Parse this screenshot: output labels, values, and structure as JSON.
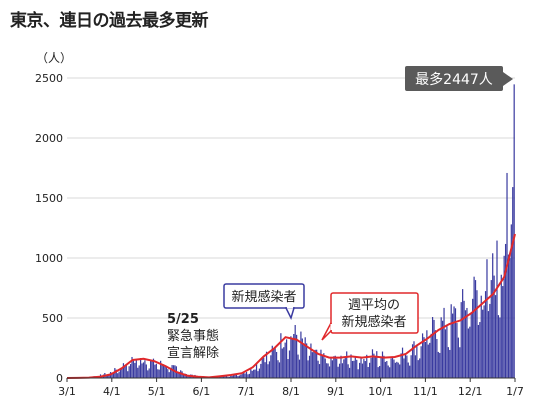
{
  "title": "東京、連日の過去最多更新",
  "unit_label": "（人）",
  "chart_data": {
    "type": "bar",
    "title": "東京、連日の過去最多更新",
    "ylabel": "（人）",
    "xlabel": "",
    "ylim": [
      0,
      2500
    ],
    "yticks": [
      0,
      500,
      1000,
      1500,
      2000,
      2500
    ],
    "xticks": [
      "3/1",
      "4/1",
      "5/1",
      "6/1",
      "7/1",
      "8/1",
      "9/1",
      "10/1",
      "11/1",
      "12/1",
      "1/7"
    ],
    "grid": true,
    "series": [
      {
        "name": "新規感染者",
        "type": "bar",
        "color": "#3a3ba0",
        "values_weekly_peak": [
          2,
          5,
          10,
          30,
          60,
          130,
          190,
          200,
          160,
          150,
          100,
          40,
          20,
          10,
          20,
          30,
          50,
          100,
          230,
          290,
          470,
          460,
          330,
          250,
          200,
          210,
          230,
          210,
          250,
          230,
          220,
          280,
          340,
          480,
          560,
          620,
          700,
          900,
          950,
          1100,
          1350,
          2447
        ]
      },
      {
        "name": "週平均の新規感染者",
        "type": "line",
        "color": "#e0282b",
        "values": [
          0,
          1,
          3,
          10,
          30,
          80,
          150,
          160,
          140,
          100,
          50,
          20,
          10,
          5,
          15,
          25,
          40,
          90,
          180,
          250,
          340,
          320,
          260,
          200,
          170,
          170,
          180,
          170,
          180,
          170,
          175,
          200,
          270,
          330,
          400,
          450,
          480,
          540,
          620,
          700,
          840,
          1200
        ]
      }
    ],
    "annotations": [
      {
        "text": "最多2447人",
        "target": "1/7"
      },
      {
        "text": "5/25 緊急事態 宣言解除",
        "target": "5/25"
      },
      {
        "text": "新規感染者",
        "target": "bars"
      },
      {
        "text": "週平均の 新規感染者",
        "target": "line"
      }
    ]
  },
  "annotations_text": {
    "max_label": "最多2447人",
    "date_label": "5/25",
    "event_line1": "緊急事態",
    "event_line2": "宣言解除",
    "bars_label": "新規感染者",
    "line_label1": "週平均の",
    "line_label2": "新規感染者"
  },
  "colors": {
    "bar": "#3a3ba0",
    "line": "#e0282b",
    "grid": "#d8d8d8",
    "callout_dark": "#5a5a5a"
  }
}
